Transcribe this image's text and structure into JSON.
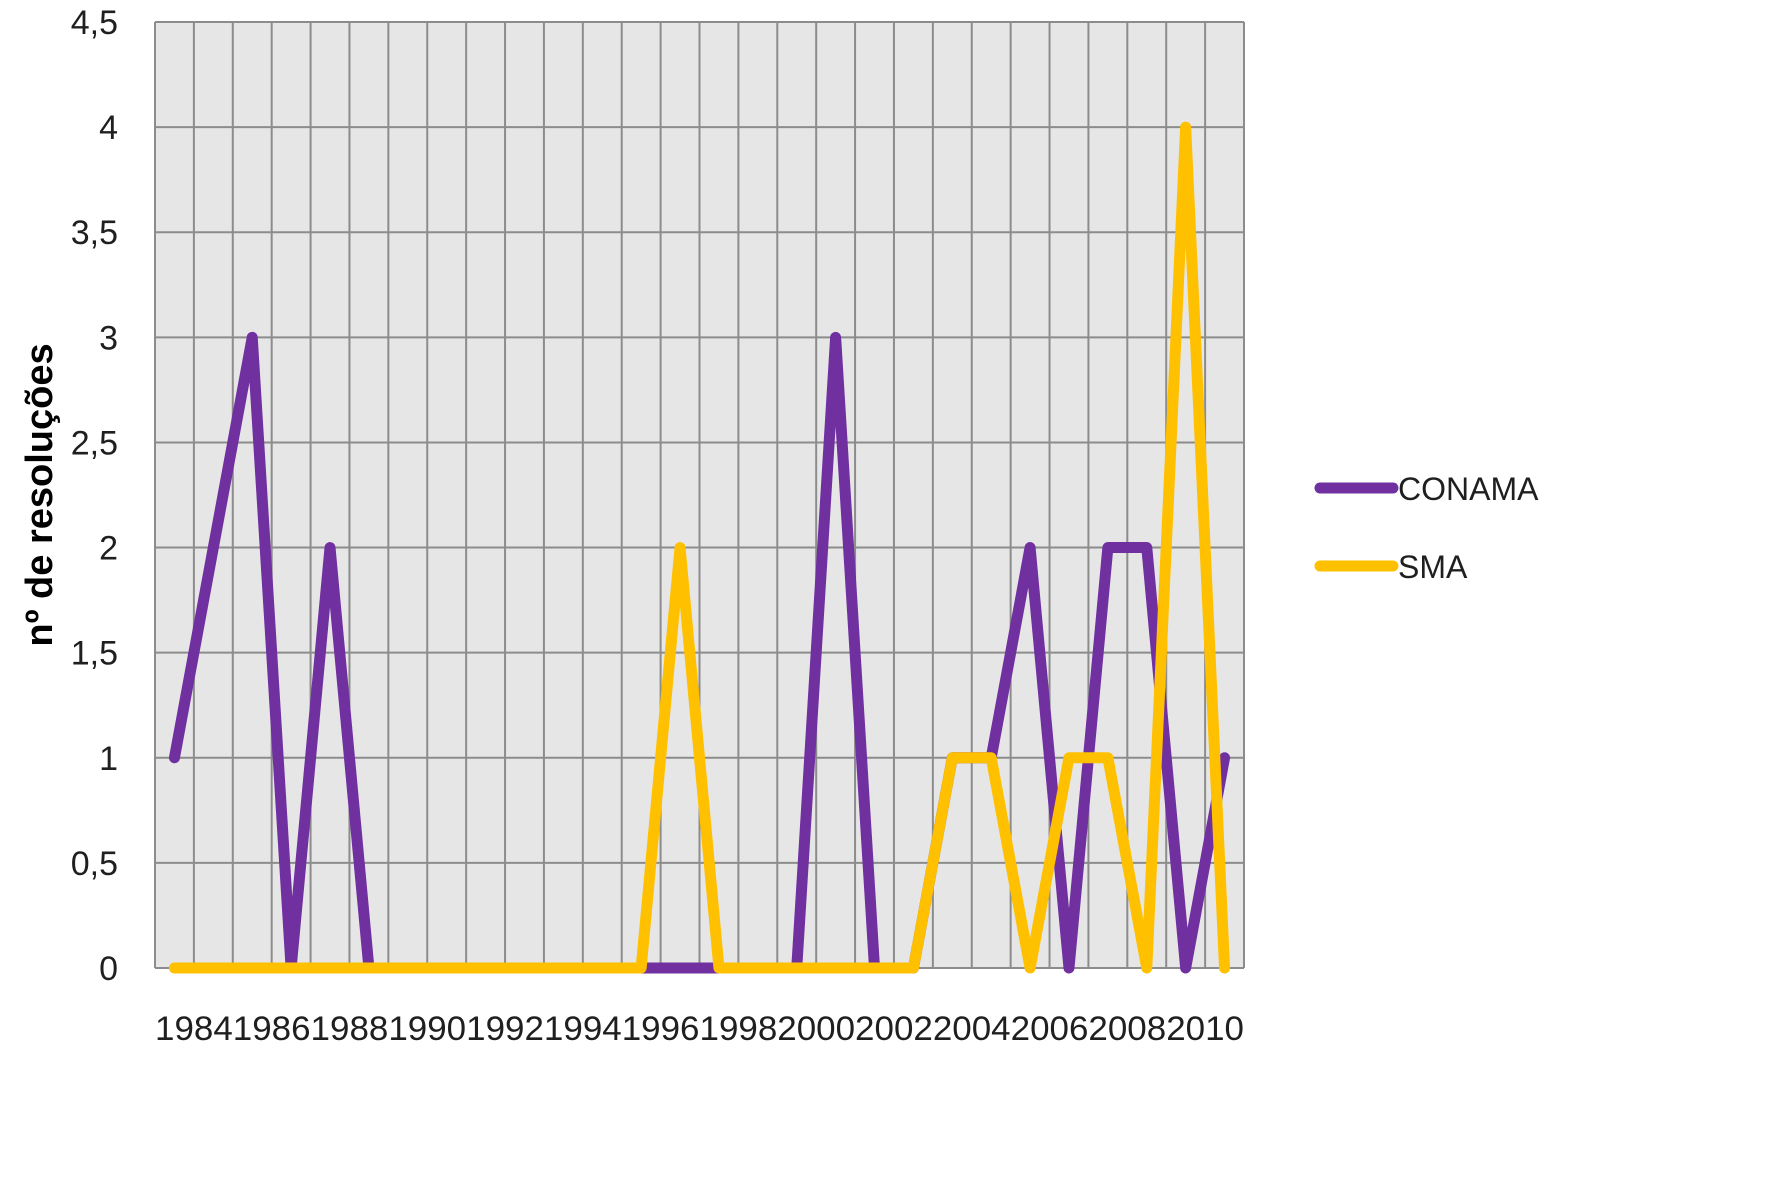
{
  "chart_data": {
    "type": "line",
    "title": "",
    "xlabel": "",
    "ylabel": "nº de resoluções",
    "x": [
      1984,
      1985,
      1986,
      1987,
      1988,
      1989,
      1990,
      1991,
      1992,
      1993,
      1994,
      1995,
      1996,
      1997,
      1998,
      1999,
      2000,
      2001,
      2002,
      2003,
      2004,
      2005,
      2006,
      2007,
      2008,
      2009,
      2010,
      2011
    ],
    "x_tick_labels": [
      "1984",
      "1986",
      "1988",
      "1990",
      "1992",
      "1994",
      "1996",
      "1998",
      "2000",
      "2002",
      "2004",
      "2006",
      "2008",
      "2010"
    ],
    "y_tick_labels": [
      "0",
      "0,5",
      "1",
      "1,5",
      "2",
      "2,5",
      "3",
      "3,5",
      "4",
      "4,5"
    ],
    "ylim": [
      0,
      4.5
    ],
    "grid": true,
    "legend_position": "right",
    "series": [
      {
        "name": "CONAMA",
        "color": "#7030A0",
        "values": [
          1,
          2,
          3,
          0,
          2,
          0,
          0,
          0,
          0,
          0,
          0,
          0,
          0,
          0,
          0,
          0,
          0,
          3,
          0,
          0,
          1,
          1,
          2,
          0,
          2,
          2,
          0,
          1
        ]
      },
      {
        "name": "SMA",
        "color": "#FFC000",
        "values": [
          0,
          0,
          0,
          0,
          0,
          0,
          0,
          0,
          0,
          0,
          0,
          0,
          0,
          2,
          0,
          0,
          0,
          0,
          0,
          0,
          1,
          1,
          0,
          1,
          1,
          0,
          4,
          0
        ]
      }
    ]
  }
}
